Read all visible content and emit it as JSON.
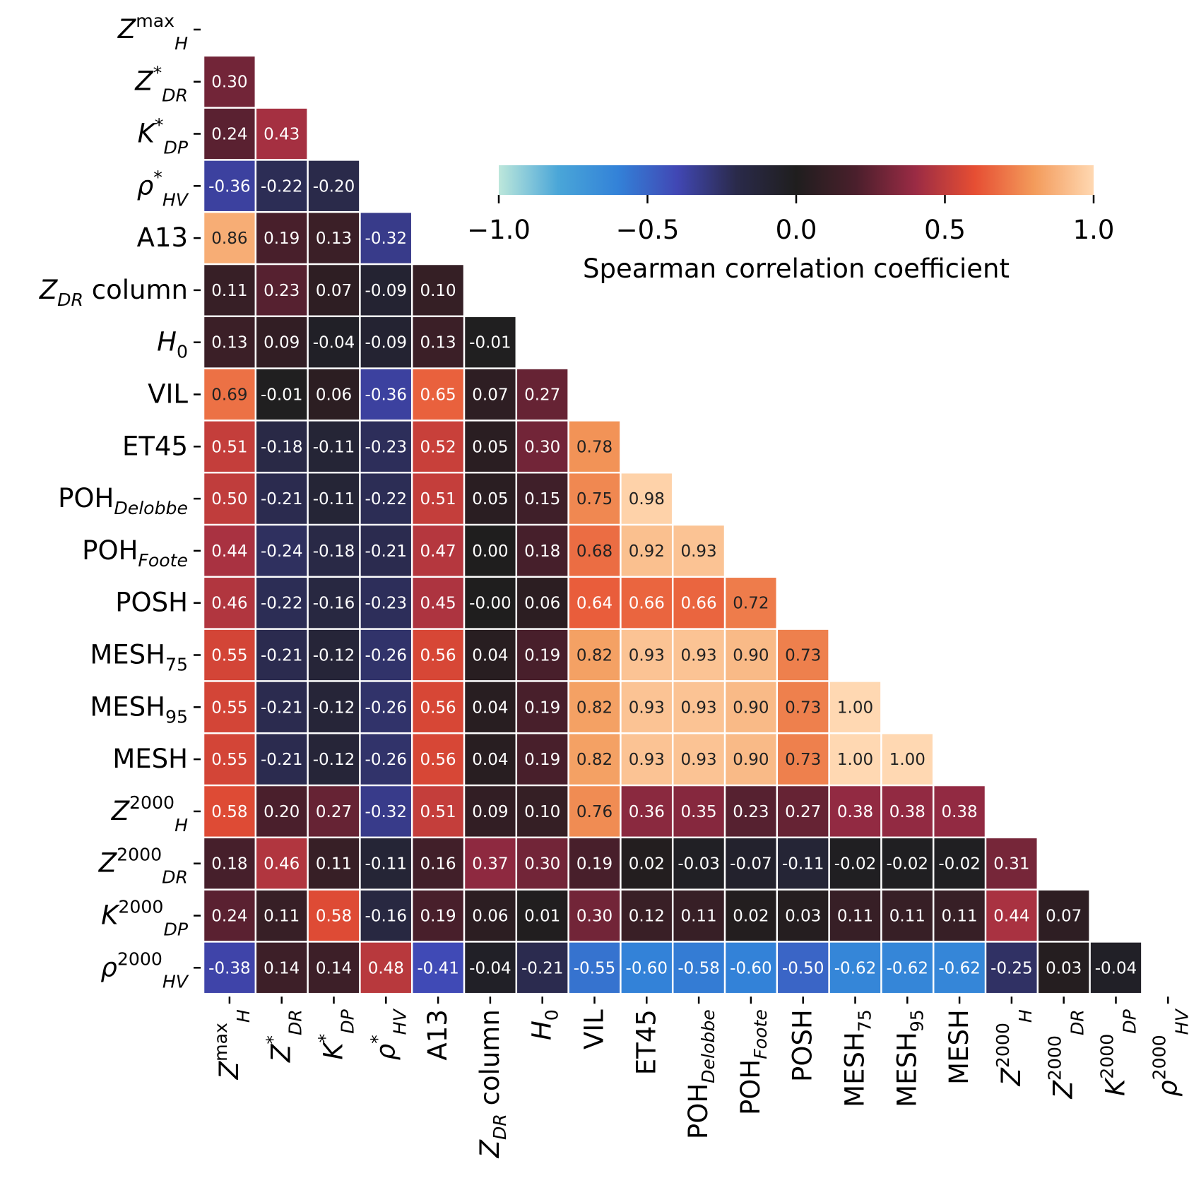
{
  "chart_data": {
    "type": "heatmap",
    "title": "",
    "xlabel": "",
    "ylabel": "",
    "variables": [
      {
        "base": "Z",
        "sub": "H",
        "sup": "max"
      },
      {
        "base": "Z",
        "sub": "DR",
        "sup": "*"
      },
      {
        "base": "K",
        "sub": "DP",
        "sup": "*"
      },
      {
        "base": "ρ",
        "sub": "HV",
        "sup": "*"
      },
      {
        "base": "A13",
        "sub": "",
        "sup": ""
      },
      {
        "base": "Z",
        "sub": "DR",
        "sup": "",
        "suffix": " column"
      },
      {
        "base": "H",
        "sub": "0",
        "sup": ""
      },
      {
        "base": "VIL",
        "sub": "",
        "sup": ""
      },
      {
        "base": "ET45",
        "sub": "",
        "sup": ""
      },
      {
        "base": "POH",
        "sub": "Delobbe",
        "sup": ""
      },
      {
        "base": "POH",
        "sub": "Foote",
        "sup": ""
      },
      {
        "base": "POSH",
        "sub": "",
        "sup": ""
      },
      {
        "base": "MESH",
        "sub": "75",
        "sup": ""
      },
      {
        "base": "MESH",
        "sub": "95",
        "sup": ""
      },
      {
        "base": "MESH",
        "sub": "",
        "sup": ""
      },
      {
        "base": "Z",
        "sub": "H",
        "sup": "2000"
      },
      {
        "base": "Z",
        "sub": "DR",
        "sup": "2000"
      },
      {
        "base": "K",
        "sub": "DP",
        "sup": "2000"
      },
      {
        "base": "ρ",
        "sub": "HV",
        "sup": "2000"
      }
    ],
    "lower_triangle_labels": [
      [],
      [
        "0.30"
      ],
      [
        "0.24",
        "0.43"
      ],
      [
        "-0.36",
        "-0.22",
        "-0.20"
      ],
      [
        "0.86",
        "0.19",
        "0.13",
        "-0.32"
      ],
      [
        "0.11",
        "0.23",
        "0.07",
        "-0.09",
        "0.10"
      ],
      [
        "0.13",
        "0.09",
        "-0.04",
        "-0.09",
        "0.13",
        "-0.01"
      ],
      [
        "0.69",
        "-0.01",
        "0.06",
        "-0.36",
        "0.65",
        "0.07",
        "0.27"
      ],
      [
        "0.51",
        "-0.18",
        "-0.11",
        "-0.23",
        "0.52",
        "0.05",
        "0.30",
        "0.78"
      ],
      [
        "0.50",
        "-0.21",
        "-0.11",
        "-0.22",
        "0.51",
        "0.05",
        "0.15",
        "0.75",
        "0.98"
      ],
      [
        "0.44",
        "-0.24",
        "-0.18",
        "-0.21",
        "0.47",
        "0.00",
        "0.18",
        "0.68",
        "0.92",
        "0.93"
      ],
      [
        "0.46",
        "-0.22",
        "-0.16",
        "-0.23",
        "0.45",
        "-0.00",
        "0.06",
        "0.64",
        "0.66",
        "0.66",
        "0.72"
      ],
      [
        "0.55",
        "-0.21",
        "-0.12",
        "-0.26",
        "0.56",
        "0.04",
        "0.19",
        "0.82",
        "0.93",
        "0.93",
        "0.90",
        "0.73"
      ],
      [
        "0.55",
        "-0.21",
        "-0.12",
        "-0.26",
        "0.56",
        "0.04",
        "0.19",
        "0.82",
        "0.93",
        "0.93",
        "0.90",
        "0.73",
        "1.00"
      ],
      [
        "0.55",
        "-0.21",
        "-0.12",
        "-0.26",
        "0.56",
        "0.04",
        "0.19",
        "0.82",
        "0.93",
        "0.93",
        "0.90",
        "0.73",
        "1.00",
        "1.00"
      ],
      [
        "0.58",
        "0.20",
        "0.27",
        "-0.32",
        "0.51",
        "0.09",
        "0.10",
        "0.76",
        "0.36",
        "0.35",
        "0.23",
        "0.27",
        "0.38",
        "0.38",
        "0.38"
      ],
      [
        "0.18",
        "0.46",
        "0.11",
        "-0.11",
        "0.16",
        "0.37",
        "0.30",
        "0.19",
        "0.02",
        "-0.03",
        "-0.07",
        "-0.11",
        "-0.02",
        "-0.02",
        "-0.02",
        "0.31"
      ],
      [
        "0.24",
        "0.11",
        "0.58",
        "-0.16",
        "0.19",
        "0.06",
        "0.01",
        "0.30",
        "0.12",
        "0.11",
        "0.02",
        "0.03",
        "0.11",
        "0.11",
        "0.11",
        "0.44",
        "0.07"
      ],
      [
        "-0.38",
        "0.14",
        "0.14",
        "0.48",
        "-0.41",
        "-0.04",
        "-0.21",
        "-0.55",
        "-0.60",
        "-0.58",
        "-0.60",
        "-0.50",
        "-0.62",
        "-0.62",
        "-0.62",
        "-0.25",
        "0.03",
        "-0.04"
      ]
    ],
    "colorbar": {
      "label": "Spearman correlation coefficient",
      "range": [
        -1.0,
        1.0
      ],
      "tick_values": [
        -1.0,
        -0.5,
        0.0,
        0.5,
        1.0
      ],
      "tick_labels": [
        "−1.0",
        "−0.5",
        "0.0",
        "0.5",
        "1.0"
      ],
      "colormap": "icefire",
      "orientation": "horizontal",
      "placement": "upper-right"
    },
    "colors": {
      "-1.0": "#bde7db",
      "-0.8": "#4aa6d8",
      "-0.6": "#3382d8",
      "-0.4": "#4147b4",
      "-0.2": "#2a2a4a",
      "0.0": "#1f1e1e",
      "0.2": "#4a1f2c",
      "0.4": "#9a2b44",
      "0.6": "#e64e33",
      "0.8": "#f39b5b",
      "1.0": "#ffd8b2"
    }
  }
}
